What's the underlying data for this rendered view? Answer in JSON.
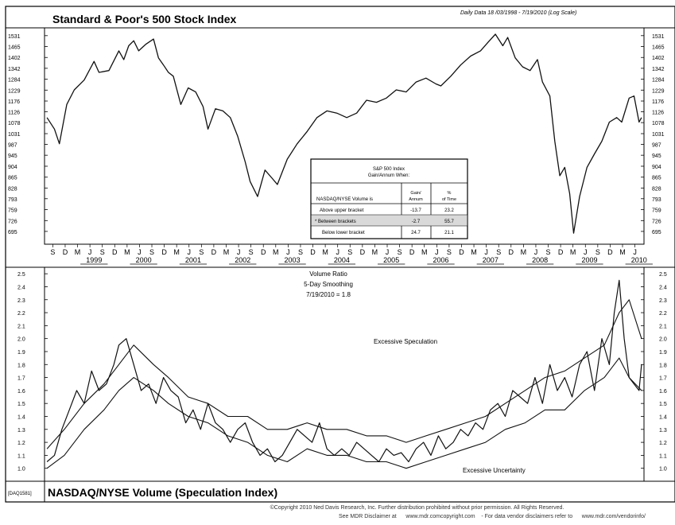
{
  "header": {
    "title": "Standard & Poor's 500 Stock Index",
    "subtitle": "Daily Data 18 /03/1998 - 7/19/2010 (Log Scale)"
  },
  "footer": {
    "chart_id": "[DAQ1581]",
    "bottom_title": "NASDAQ/NYSE Volume (Speculation Index)",
    "copyright": "©Copyright 2010 Ned Davis Research, Inc. Further distribution prohibited without prior permission. All Rights Reserved.",
    "disclaimer_1": "See MDR Disclaimer at",
    "disclaimer_2": "www.mdr.comcopyright.com",
    "disclaimer_3": "- For data vendor disclaimers refer to",
    "disclaimer_4": "www.mdr.com/vendorinfo/"
  },
  "stats_table": {
    "title_line1": "S&P  500  Index",
    "title_line2": "Gain/Annum When:",
    "col_label": "NASDAQ/NYSE      Volume    is",
    "col_gain": "Gain/ Annum",
    "col_pct": "% of Time",
    "rows": [
      {
        "label": "Above   upper  bracket",
        "gain": "-13.7",
        "pct": "23.2"
      },
      {
        "label": "*  Between   brackets",
        "gain": "-2.7",
        "pct": "55.7"
      },
      {
        "label": "Below  lower  bracket",
        "gain": "24.7",
        "pct": "21.1"
      }
    ]
  },
  "lower_annotations": {
    "title": "Volume Ratio",
    "smoothing": "5-Day Smoothing",
    "current": "7/19/2010 = 1.8",
    "upper_label": "Excessive Speculation",
    "lower_label": "Excessive Uncertainty"
  },
  "chart_data": [
    {
      "type": "line",
      "title": "Standard & Poor's 500 Stock Index",
      "yscale": "log",
      "ylim": [
        660,
        1580
      ],
      "xlim": [
        1998.5,
        2010.6
      ],
      "yticks": [
        1531,
        1465,
        1402,
        1342,
        1284,
        1229,
        1176,
        1126,
        1078,
        1031,
        987,
        945,
        904,
        865,
        828,
        793,
        759,
        726,
        695
      ],
      "month_labels": [
        "S",
        "D",
        "M",
        "J",
        "S",
        "D",
        "M",
        "J",
        "S",
        "D",
        "M",
        "J",
        "S",
        "D",
        "M",
        "J",
        "S",
        "D",
        "M",
        "J",
        "S",
        "D",
        "M",
        "J",
        "S",
        "D",
        "M",
        "J",
        "S",
        "D",
        "M",
        "J",
        "S",
        "D",
        "M",
        "J",
        "S",
        "D",
        "M",
        "J",
        "S",
        "D",
        "M",
        "J",
        "S",
        "D",
        "M",
        "J"
      ],
      "year_labels": [
        "1999",
        "2000",
        "2001",
        "2002",
        "2003",
        "2004",
        "2005",
        "2006",
        "2007",
        "2008",
        "2009",
        "2010"
      ],
      "series": [
        {
          "x": [
            1998.55,
            1998.7,
            1998.8,
            1998.95,
            1999.1,
            1999.3,
            1999.5,
            1999.6,
            1999.8,
            2000.0,
            2000.1,
            2000.2,
            2000.3,
            2000.4,
            2000.55,
            2000.7,
            2000.8,
            2000.9,
            2001.0,
            2001.1,
            2001.25,
            2001.4,
            2001.55,
            2001.7,
            2001.8,
            2001.95,
            2002.1,
            2002.25,
            2002.4,
            2002.55,
            2002.65,
            2002.8,
            2002.95,
            2003.1,
            2003.2,
            2003.4,
            2003.6,
            2003.8,
            2004.0,
            2004.2,
            2004.4,
            2004.6,
            2004.8,
            2005.0,
            2005.2,
            2005.4,
            2005.6,
            2005.8,
            2006.0,
            2006.2,
            2006.4,
            2006.5,
            2006.7,
            2006.9,
            2007.1,
            2007.3,
            2007.45,
            2007.6,
            2007.75,
            2007.85,
            2008.0,
            2008.15,
            2008.3,
            2008.45,
            2008.55,
            2008.7,
            2008.8,
            2008.9,
            2009.0,
            2009.1,
            2009.18,
            2009.3,
            2009.45,
            2009.6,
            2009.75,
            2009.9,
            2010.05,
            2010.15,
            2010.3,
            2010.4,
            2010.5,
            2010.55
          ],
          "y": [
            1100,
            1050,
            990,
            1160,
            1230,
            1280,
            1380,
            1320,
            1330,
            1440,
            1390,
            1470,
            1500,
            1440,
            1480,
            1510,
            1400,
            1360,
            1320,
            1300,
            1160,
            1240,
            1220,
            1150,
            1050,
            1140,
            1130,
            1100,
            1020,
            920,
            850,
            800,
            890,
            860,
            840,
            930,
            990,
            1040,
            1100,
            1130,
            1120,
            1100,
            1120,
            1180,
            1170,
            1190,
            1230,
            1220,
            1270,
            1290,
            1260,
            1250,
            1300,
            1360,
            1410,
            1440,
            1490,
            1540,
            1470,
            1520,
            1400,
            1350,
            1330,
            1390,
            1270,
            1200,
            1000,
            870,
            900,
            810,
            690,
            800,
            900,
            950,
            1000,
            1080,
            1100,
            1080,
            1190,
            1200,
            1080,
            1100
          ]
        }
      ]
    },
    {
      "type": "line",
      "title": "NASDAQ/NYSE Volume (Speculation Index)",
      "ylim": [
        0.9,
        2.55
      ],
      "yticks": [
        "2.5",
        "2.4",
        "2.3",
        "2.2",
        "2.1",
        "2.0",
        "1.9",
        "1.8",
        "1.7",
        "1.6",
        "1.5",
        "1.4",
        "1.3",
        "1.2",
        "1.1",
        "1.0"
      ],
      "series": [
        {
          "name": "Volume Ratio",
          "x": [
            1998.55,
            1998.7,
            1998.85,
            1999.0,
            1999.15,
            1999.3,
            1999.45,
            1999.6,
            1999.75,
            1999.9,
            2000.0,
            2000.15,
            2000.3,
            2000.45,
            2000.6,
            2000.75,
            2000.9,
            2001.05,
            2001.2,
            2001.35,
            2001.5,
            2001.65,
            2001.8,
            2001.95,
            2002.1,
            2002.25,
            2002.4,
            2002.55,
            2002.7,
            2002.85,
            2003.0,
            2003.15,
            2003.3,
            2003.45,
            2003.6,
            2003.75,
            2003.9,
            2004.05,
            2004.2,
            2004.35,
            2004.5,
            2004.65,
            2004.8,
            2004.95,
            2005.1,
            2005.25,
            2005.4,
            2005.55,
            2005.7,
            2005.85,
            2006.0,
            2006.15,
            2006.3,
            2006.45,
            2006.6,
            2006.75,
            2006.9,
            2007.05,
            2007.2,
            2007.35,
            2007.5,
            2007.65,
            2007.8,
            2007.95,
            2008.1,
            2008.25,
            2008.4,
            2008.55,
            2008.7,
            2008.85,
            2009.0,
            2009.15,
            2009.3,
            2009.45,
            2009.6,
            2009.75,
            2009.9,
            2010.0,
            2010.1,
            2010.2,
            2010.3,
            2010.4,
            2010.5,
            2010.55
          ],
          "y": [
            1.05,
            1.1,
            1.3,
            1.45,
            1.6,
            1.5,
            1.75,
            1.6,
            1.65,
            1.8,
            1.95,
            2.0,
            1.8,
            1.6,
            1.65,
            1.5,
            1.7,
            1.6,
            1.55,
            1.35,
            1.45,
            1.3,
            1.5,
            1.35,
            1.3,
            1.2,
            1.3,
            1.35,
            1.2,
            1.1,
            1.15,
            1.05,
            1.1,
            1.2,
            1.3,
            1.25,
            1.2,
            1.35,
            1.15,
            1.1,
            1.15,
            1.1,
            1.2,
            1.15,
            1.1,
            1.05,
            1.15,
            1.1,
            1.12,
            1.05,
            1.15,
            1.2,
            1.1,
            1.25,
            1.15,
            1.2,
            1.3,
            1.25,
            1.35,
            1.3,
            1.45,
            1.5,
            1.4,
            1.6,
            1.55,
            1.5,
            1.7,
            1.5,
            1.8,
            1.6,
            1.7,
            1.55,
            1.8,
            1.9,
            1.6,
            2.0,
            1.8,
            2.2,
            2.45,
            2.0,
            1.7,
            1.65,
            1.6,
            1.8
          ]
        },
        {
          "name": "Upper bracket",
          "x": [
            1998.55,
            1998.9,
            1999.3,
            1999.7,
            2000.0,
            2000.3,
            2000.7,
            2001.0,
            2001.4,
            2001.8,
            2002.2,
            2002.6,
            2003.0,
            2003.4,
            2003.8,
            2004.2,
            2004.6,
            2005.0,
            2005.4,
            2005.8,
            2006.2,
            2006.6,
            2007.0,
            2007.4,
            2007.8,
            2008.2,
            2008.6,
            2009.0,
            2009.4,
            2009.8,
            2010.1,
            2010.3,
            2010.55
          ],
          "y": [
            1.15,
            1.3,
            1.5,
            1.65,
            1.8,
            1.95,
            1.8,
            1.7,
            1.55,
            1.5,
            1.4,
            1.4,
            1.3,
            1.3,
            1.35,
            1.3,
            1.3,
            1.25,
            1.25,
            1.2,
            1.25,
            1.3,
            1.35,
            1.4,
            1.5,
            1.6,
            1.7,
            1.75,
            1.85,
            1.95,
            2.2,
            2.3,
            2.0
          ]
        },
        {
          "name": "Lower bracket",
          "x": [
            1998.55,
            1998.9,
            1999.3,
            1999.7,
            2000.0,
            2000.3,
            2000.7,
            2001.0,
            2001.4,
            2001.8,
            2002.2,
            2002.6,
            2003.0,
            2003.4,
            2003.8,
            2004.2,
            2004.6,
            2005.0,
            2005.4,
            2005.8,
            2006.2,
            2006.6,
            2007.0,
            2007.4,
            2007.8,
            2008.2,
            2008.6,
            2009.0,
            2009.4,
            2009.8,
            2010.1,
            2010.3,
            2010.55
          ],
          "y": [
            1.0,
            1.1,
            1.3,
            1.45,
            1.6,
            1.7,
            1.6,
            1.5,
            1.4,
            1.35,
            1.25,
            1.2,
            1.1,
            1.05,
            1.15,
            1.1,
            1.1,
            1.05,
            1.05,
            1.0,
            1.05,
            1.1,
            1.15,
            1.2,
            1.3,
            1.35,
            1.45,
            1.45,
            1.6,
            1.7,
            1.85,
            1.7,
            1.6
          ]
        }
      ]
    }
  ]
}
